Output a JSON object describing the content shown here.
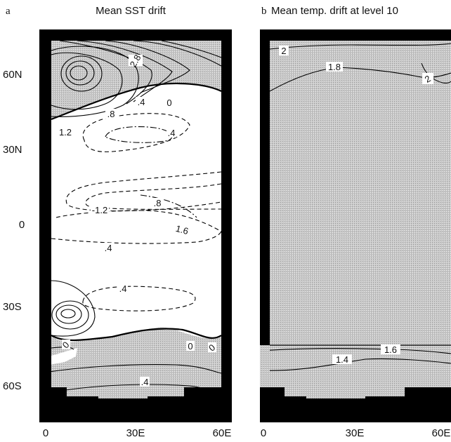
{
  "chart_data": [
    {
      "panel_letter": "a",
      "type": "contour",
      "title": "Mean SST drift",
      "x_ticks": [
        "0",
        "30E",
        "60E"
      ],
      "y_ticks": [
        "60N",
        "30N",
        "0",
        "30S",
        "60S"
      ],
      "xlim": [
        0,
        60
      ],
      "ylim": [
        -75,
        75
      ],
      "shading": "positive values shaded",
      "contour_labels": [
        {
          "text": "2.8",
          "lon": 16,
          "lat": 63
        },
        {
          "text": ".4",
          "lon": 32,
          "lat": 44
        },
        {
          "text": "0",
          "lon": 43,
          "lat": 43
        },
        {
          "text": ".8",
          "lon": 18,
          "lat": 40
        },
        {
          "text": "1.2",
          "lon": 3,
          "lat": 35
        },
        {
          "text": ".4",
          "lon": 42,
          "lat": 33
        },
        {
          "text": ".8",
          "lon": 34,
          "lat": 3
        },
        {
          "text": "-1.2",
          "lon": 20,
          "lat": 0
        },
        {
          "text": "1.6",
          "lon": 46,
          "lat": -5
        },
        {
          "text": ".4",
          "lon": 20,
          "lat": -8
        },
        {
          "text": ".4",
          "lon": 25,
          "lat": -27
        },
        {
          "text": "0",
          "lon": 10,
          "lat": -49
        },
        {
          "text": "0",
          "lon": 45,
          "lat": -49
        },
        {
          "text": "0",
          "lon": 50,
          "lat": -48
        },
        {
          "text": ".4",
          "lon": 30,
          "lat": -64
        }
      ]
    },
    {
      "panel_letter": "b",
      "type": "contour",
      "title": "Mean temp. drift at level 10",
      "x_ticks": [
        "0",
        "30E",
        "60E"
      ],
      "xlim": [
        0,
        60
      ],
      "ylim": [
        -75,
        75
      ],
      "shading": "positive values shaded",
      "contour_labels": [
        {
          "text": "2",
          "lon": 1,
          "lat": 72
        },
        {
          "text": "1.8",
          "lon": 17,
          "lat": 65
        },
        {
          "text": "2",
          "lon": 58,
          "lat": 62
        },
        {
          "text": "1.6",
          "lon": 45,
          "lat": -53
        },
        {
          "text": "1.4",
          "lon": 25,
          "lat": -63
        }
      ]
    }
  ]
}
